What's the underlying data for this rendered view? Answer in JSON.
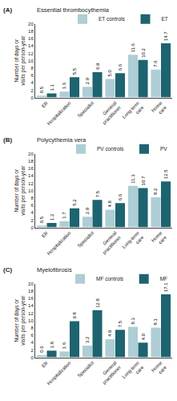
{
  "chart_data": [
    {
      "type": "bar",
      "title": "Essential thrombocythemia",
      "annotations": [
        "(A)"
      ],
      "ylabel": "Number of days or visits per person-year",
      "categories": [
        "ER",
        "Hospitalization",
        "Specialist",
        "General\npractitioner",
        "Long-term\ncare",
        "Home\ncare"
      ],
      "series": [
        {
          "name": "ET controls",
          "color": "#aecdd4",
          "values": [
            0.5,
            1.6,
            2.9,
            5.0,
            11.6,
            7.6
          ],
          "value_labels": [
            "0.5",
            "1.6",
            "2.9",
            "5.0",
            "11.6",
            "7.6"
          ]
        },
        {
          "name": "ET",
          "color": "#1d6470",
          "values": [
            1.1,
            5.5,
            6.9,
            6.6,
            10.2,
            14.7
          ],
          "value_labels": [
            "1.1",
            "5.5",
            "6.9",
            "6.6",
            "10.2",
            "14.7"
          ]
        }
      ],
      "ylim": [
        0,
        20
      ],
      "yticks": [
        0,
        2,
        4,
        6,
        8,
        10,
        12,
        14,
        16,
        18,
        20
      ],
      "grid": false,
      "legend": "upper right",
      "data_labels": true
    },
    {
      "type": "bar",
      "title": "Polycythemia vera",
      "annotations": [
        "(B)"
      ],
      "ylabel": "Number of days or visits per person-year",
      "categories": [
        "ER",
        "Hospitalization",
        "Specialist",
        "General\npractitioner",
        "Long-term\ncare",
        "Home\ncare"
      ],
      "series": [
        {
          "name": "PV controls",
          "color": "#aecdd4",
          "values": [
            0.5,
            1.7,
            2.9,
            4.8,
            11.3,
            8.2
          ],
          "value_labels": [
            "0.5",
            "1.7",
            "2.9",
            "4.8",
            "11.3",
            "8.2"
          ]
        },
        {
          "name": "PV",
          "color": "#1d6470",
          "values": [
            1.2,
            5.2,
            7.5,
            6.6,
            10.7,
            12.5
          ],
          "value_labels": [
            "1.2",
            "5.2",
            "7.5",
            "6.6",
            "10.7",
            "12.5"
          ]
        }
      ],
      "ylim": [
        0,
        20
      ],
      "yticks": [
        0,
        2,
        4,
        6,
        8,
        10,
        12,
        14,
        16,
        18,
        20
      ],
      "grid": false,
      "legend": "upper right",
      "data_labels": true
    },
    {
      "type": "bar",
      "title": "Myelofibrosis",
      "annotations": [
        "(C)"
      ],
      "ylabel": "Number of days or visits per person-year",
      "categories": [
        "ER",
        "Hospitalization",
        "Specialist",
        "General\npractitioner",
        "Long-term\ncare",
        "Home\ncare"
      ],
      "series": [
        {
          "name": "MF controls",
          "color": "#aecdd4",
          "values": [
            0.6,
            1.6,
            3.2,
            4.9,
            8.3,
            8.1
          ],
          "value_labels": [
            "0.6",
            "1.6",
            "3.2",
            "4.9",
            "8.3",
            "8.1"
          ]
        },
        {
          "name": "MF",
          "color": "#1d6470",
          "values": [
            1.8,
            9.8,
            12.8,
            7.5,
            4.0,
            17.1
          ],
          "value_labels": [
            "1.8",
            "9.8",
            "12.8",
            "7.5",
            "4.0",
            "17.1"
          ]
        }
      ],
      "ylim": [
        0,
        20
      ],
      "yticks": [
        0,
        2,
        4,
        6,
        8,
        10,
        12,
        14,
        16,
        18,
        20
      ],
      "grid": false,
      "legend": "upper right",
      "data_labels": true
    }
  ]
}
